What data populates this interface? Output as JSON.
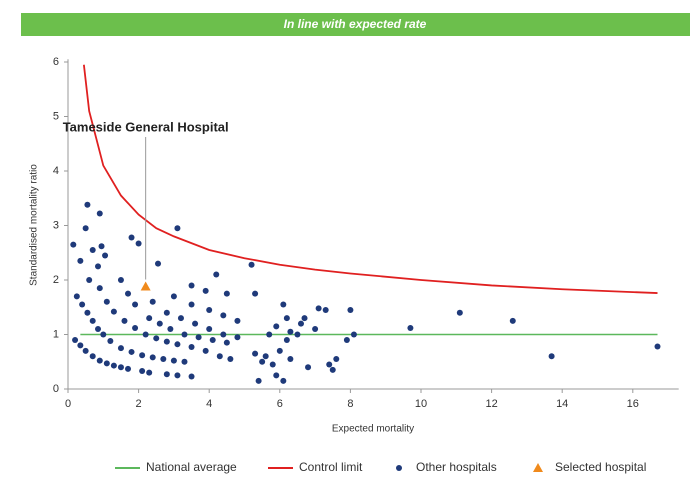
{
  "chart_data": {
    "type": "scatter",
    "title": "In line with expected rate",
    "title_color": "#6cbf4c",
    "xlabel": "Expected mortality",
    "ylabel": "Standardised mortality ratio",
    "xlim": [
      0,
      17.3
    ],
    "ylim": [
      0,
      6.05
    ],
    "xticks": [
      0,
      2,
      4,
      6,
      8,
      10,
      12,
      14,
      16
    ],
    "yticks": [
      0,
      1,
      2,
      3,
      4,
      5,
      6
    ],
    "annotation": "Tameside General Hospital",
    "series": [
      {
        "name": "National average",
        "color": "#5cb85c",
        "marker": "line",
        "x": [
          0.35,
          16.7
        ],
        "values": [
          1,
          1
        ]
      },
      {
        "name": "Control limit",
        "color": "#e02020",
        "marker": "line",
        "x": [
          0.45,
          0.6,
          0.8,
          1,
          1.5,
          2,
          2.5,
          3,
          4,
          5,
          6,
          7,
          8,
          10,
          12,
          14,
          16.7
        ],
        "values": [
          5.95,
          5.1,
          4.6,
          4.1,
          3.55,
          3.2,
          2.95,
          2.8,
          2.55,
          2.4,
          2.28,
          2.19,
          2.12,
          2.0,
          1.9,
          1.83,
          1.76
        ]
      },
      {
        "name": "Other hospitals",
        "color": "#1f3a7a",
        "marker": "circle",
        "x": [
          0.2,
          0.35,
          0.5,
          0.7,
          0.9,
          1.1,
          1.3,
          1.5,
          1.7,
          2.1,
          2.3,
          2.8,
          3.1,
          3.5,
          0.25,
          0.4,
          0.55,
          0.7,
          0.85,
          1.0,
          1.2,
          1.5,
          1.8,
          2.1,
          2.4,
          2.7,
          3.0,
          3.3,
          0.9,
          1.1,
          1.3,
          1.6,
          1.9,
          2.2,
          2.5,
          2.8,
          3.1,
          3.5,
          3.9,
          4.3,
          4.6,
          1.7,
          1.9,
          2.3,
          2.6,
          2.9,
          3.3,
          3.7,
          4.1,
          4.5,
          2.4,
          2.8,
          3.2,
          3.6,
          4.0,
          4.4,
          4.8,
          3.0,
          3.5,
          4.0,
          4.4,
          4.8,
          0.15,
          0.35,
          0.5,
          0.55,
          0.6,
          0.7,
          0.85,
          0.9,
          0.95,
          1.05,
          1.5,
          1.8,
          2.0,
          2.55,
          3.1,
          3.5,
          4.2,
          3.9,
          4.5,
          5.2,
          5.3,
          6.1,
          5.3,
          5.4,
          5.5,
          5.6,
          5.8,
          5.9,
          6.0,
          6.1,
          6.2,
          6.3,
          6.5,
          6.6,
          6.8,
          5.7,
          5.9,
          6.3,
          7.0,
          7.1,
          7.3,
          7.5,
          7.6,
          7.9,
          8.0,
          8.1,
          6.2,
          6.7,
          7.4,
          9.7,
          11.1,
          12.6,
          13.7,
          16.7
        ],
        "values": [
          0.9,
          0.8,
          0.7,
          0.6,
          0.52,
          0.47,
          0.43,
          0.4,
          0.37,
          0.33,
          0.3,
          0.27,
          0.25,
          0.23,
          1.7,
          1.55,
          1.4,
          1.25,
          1.1,
          1.0,
          0.88,
          0.75,
          0.68,
          0.62,
          0.58,
          0.55,
          0.52,
          0.5,
          1.85,
          1.6,
          1.42,
          1.25,
          1.12,
          1.0,
          0.93,
          0.87,
          0.82,
          0.77,
          0.7,
          0.6,
          0.55,
          1.75,
          1.55,
          1.3,
          1.2,
          1.1,
          1.0,
          0.95,
          0.9,
          0.85,
          1.6,
          1.4,
          1.3,
          1.2,
          1.1,
          1.0,
          0.95,
          1.7,
          1.55,
          1.45,
          1.35,
          1.25,
          2.65,
          2.35,
          2.95,
          3.38,
          2.0,
          2.55,
          2.25,
          3.22,
          2.62,
          2.45,
          2.0,
          2.78,
          2.67,
          2.3,
          2.95,
          1.9,
          2.1,
          1.8,
          1.75,
          2.28,
          1.75,
          1.55,
          0.65,
          0.15,
          0.5,
          0.6,
          0.45,
          0.25,
          0.7,
          0.15,
          0.9,
          0.55,
          1.0,
          1.2,
          0.4,
          1.0,
          1.15,
          1.05,
          1.1,
          1.48,
          1.45,
          0.35,
          0.55,
          0.9,
          1.45,
          1.0,
          1.3,
          1.3,
          0.45,
          1.12,
          1.4,
          1.25,
          0.6,
          0.78
        ]
      },
      {
        "name": "Selected hospital",
        "color": "#f08a1c",
        "marker": "triangle",
        "x": [
          2.2
        ],
        "values": [
          1.88
        ]
      }
    ]
  }
}
